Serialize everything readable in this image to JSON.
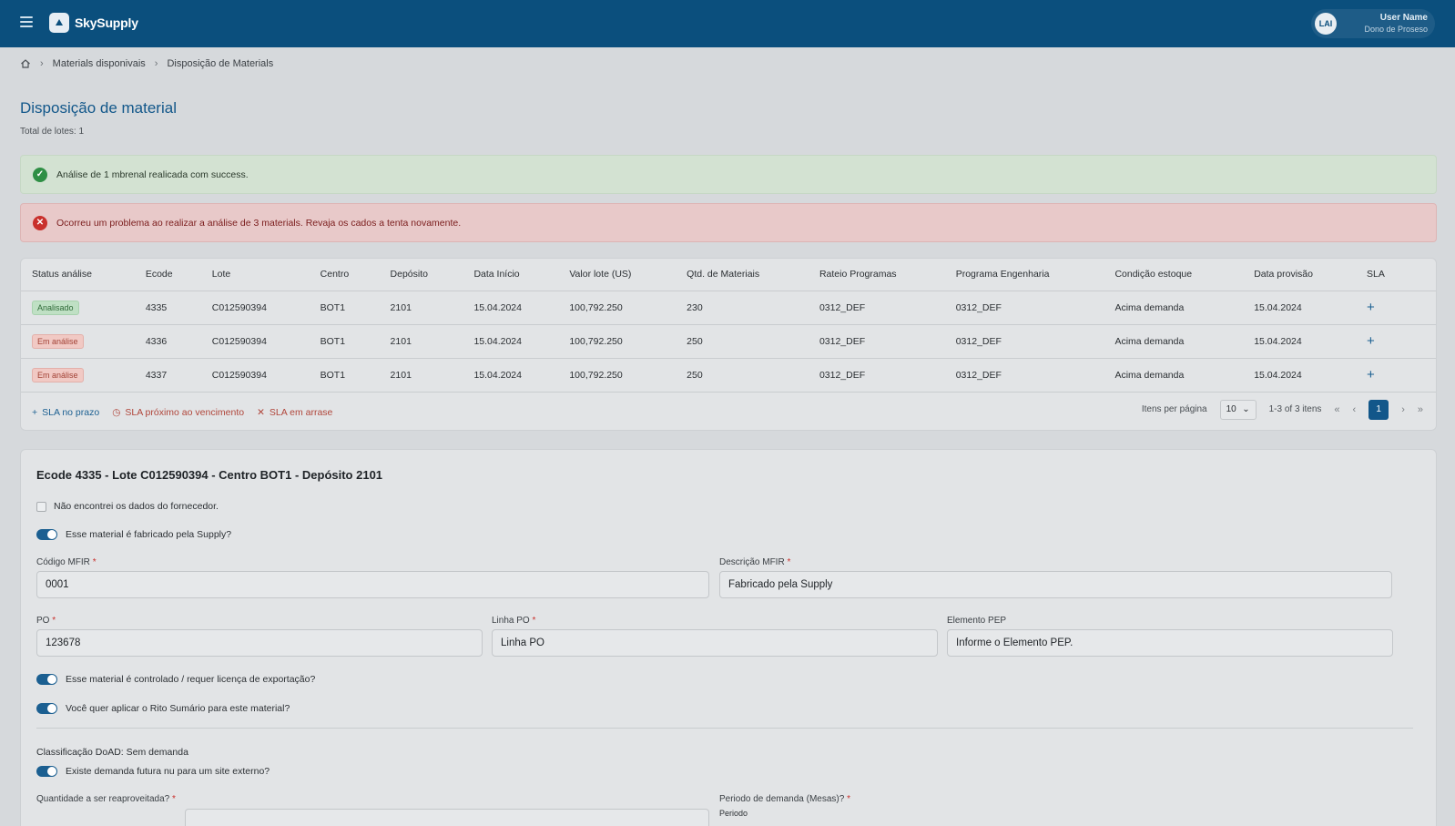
{
  "app": {
    "name": "SkySupply"
  },
  "user": {
    "initials": "LAI",
    "name": "User Name",
    "subtitle": "Dono de Proseso"
  },
  "breadcrumb": [
    "Materials disponivais",
    "Disposição de Materials"
  ],
  "page": {
    "title": "Disposição de material",
    "subtitle": "Total de lotes: 1"
  },
  "alerts": {
    "success": "Análise de 1 mbrenal realicada com success.",
    "error": "Ocorreu um problema ao realizar a análise de 3 materials. Revaja os cados a tenta novamente."
  },
  "table": {
    "headers": [
      "Status análise",
      "Ecode",
      "Lote",
      "Centro",
      "Depósito",
      "Data Início",
      "Valor lote (US)",
      "Qtd. de Materiais",
      "Rateio Programas",
      "Programa Engenharia",
      "Condição estoque",
      "Data provisão",
      "SLA"
    ],
    "rows": [
      {
        "status": "Analisado",
        "status_type": "ok",
        "ecode": "4335",
        "lote": "C012590394",
        "centro": "BOT1",
        "deposito": "2101",
        "data_inicio": "15.04.2024",
        "valor": "100,792.250",
        "qtd": "230",
        "rateio": "0312_DEF",
        "programa": "0312_DEF",
        "condicao": "Acima demanda",
        "data_provisao": "15.04.2024",
        "sla": "+"
      },
      {
        "status": "Em análise",
        "status_type": "warn",
        "ecode": "4336",
        "lote": "C012590394",
        "centro": "BOT1",
        "deposito": "2101",
        "data_inicio": "15.04.2024",
        "valor": "100,792.250",
        "qtd": "250",
        "rateio": "0312_DEF",
        "programa": "0312_DEF",
        "condicao": "Acima demanda",
        "data_provisao": "15.04.2024",
        "sla": "+"
      },
      {
        "status": "Em análise",
        "status_type": "warn",
        "ecode": "4337",
        "lote": "C012590394",
        "centro": "BOT1",
        "deposito": "2101",
        "data_inicio": "15.04.2024",
        "valor": "100,792.250",
        "qtd": "250",
        "rateio": "0312_DEF",
        "programa": "0312_DEF",
        "condicao": "Acima demanda",
        "data_provisao": "15.04.2024",
        "sla": "+"
      }
    ],
    "legend": {
      "ok": "SLA no prazo",
      "warn": "SLA próximo ao vencimento",
      "bad": "SLA em arrase"
    },
    "pager": {
      "items_label": "Itens per página",
      "per_page": "10",
      "range": "1-3 of 3 itens",
      "current": "1",
      "first": "«",
      "prev": "‹",
      "next": "›",
      "last": "»"
    }
  },
  "form": {
    "title": "Ecode 4335 - Lote C012590394 - Centro BOT1 - Depósito 2101",
    "not_found_label": "Não encontrei os dados do fornecedor.",
    "made_by_label": "Esse material é fabricado pela Supply?",
    "codigo_label": "Código MFIR",
    "codigo_value": "0001",
    "descricao_label": "Descrição MFIR",
    "descricao_value": "Fabricado pela Supply",
    "po_label": "PO",
    "po_value": "123678",
    "linha_label": "Linha PO",
    "linha_value": "Linha PO",
    "pep_label": "Elemento PEP",
    "pep_value": "Informe o Elemento PEP.",
    "export_label": "Esse material é controlado / requer licença de exportação?",
    "rito_label": "Você quer aplicar o Rito Sumário para este material?",
    "classificacao": "Classificação DoAD: Sem demanda",
    "future_label": "Existe demanda futura nu para um site externo?",
    "quantidade_label": "Quantidade a ser reaproveitada?",
    "periodo_label": "Periodo de demanda (Mesas)?",
    "periodo_sub": "Periodo",
    "required": "*"
  },
  "colors": {
    "topbar": "#0b4f7d",
    "accent": "#12578a"
  }
}
